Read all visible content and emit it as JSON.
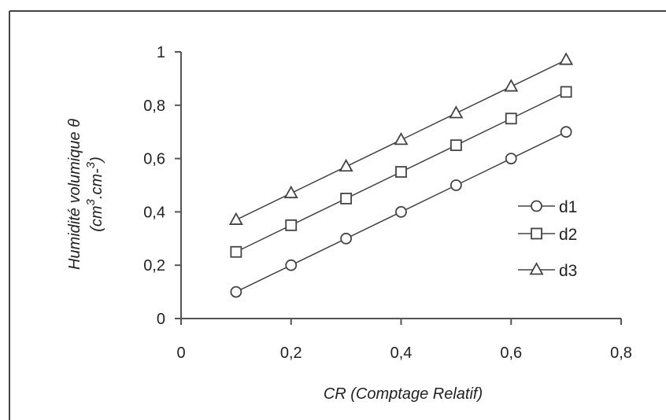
{
  "chart_data": {
    "type": "line",
    "title": "",
    "xlabel": "CR (Comptage Relatif)",
    "ylabel": {
      "line1": "Humidité volumique θ",
      "line2_open": "(cm",
      "line2_sup1": "3",
      "line2_mid": ".cm-",
      "line2_sup2": "3",
      "line2_close": ")"
    },
    "xlim": [
      0,
      0.8
    ],
    "ylim": [
      0,
      1
    ],
    "x_ticks": [
      0,
      0.2,
      0.4,
      0.6,
      0.8
    ],
    "x_tick_labels": [
      "0",
      "0,2",
      "0,4",
      "0,6",
      "0,8"
    ],
    "y_ticks": [
      0,
      0.2,
      0.4,
      0.6,
      0.8,
      1
    ],
    "y_tick_labels": [
      "0",
      "0,2",
      "0,4",
      "0,6",
      "0,8",
      "1"
    ],
    "grid": false,
    "legend_position": "right-middle",
    "x": [
      0.1,
      0.2,
      0.3,
      0.4,
      0.5,
      0.6,
      0.7
    ],
    "series": [
      {
        "name": "d1",
        "marker": "circle",
        "values": [
          0.1,
          0.2,
          0.3,
          0.4,
          0.5,
          0.6,
          0.7
        ]
      },
      {
        "name": "d2",
        "marker": "square",
        "values": [
          0.25,
          0.35,
          0.45,
          0.55,
          0.65,
          0.75,
          0.85
        ]
      },
      {
        "name": "d3",
        "marker": "triangle",
        "values": [
          0.37,
          0.47,
          0.57,
          0.67,
          0.77,
          0.87,
          0.97
        ]
      }
    ],
    "colors": {
      "line": "#444444",
      "axis": "#555555",
      "marker_fill": "#ffffff"
    }
  }
}
